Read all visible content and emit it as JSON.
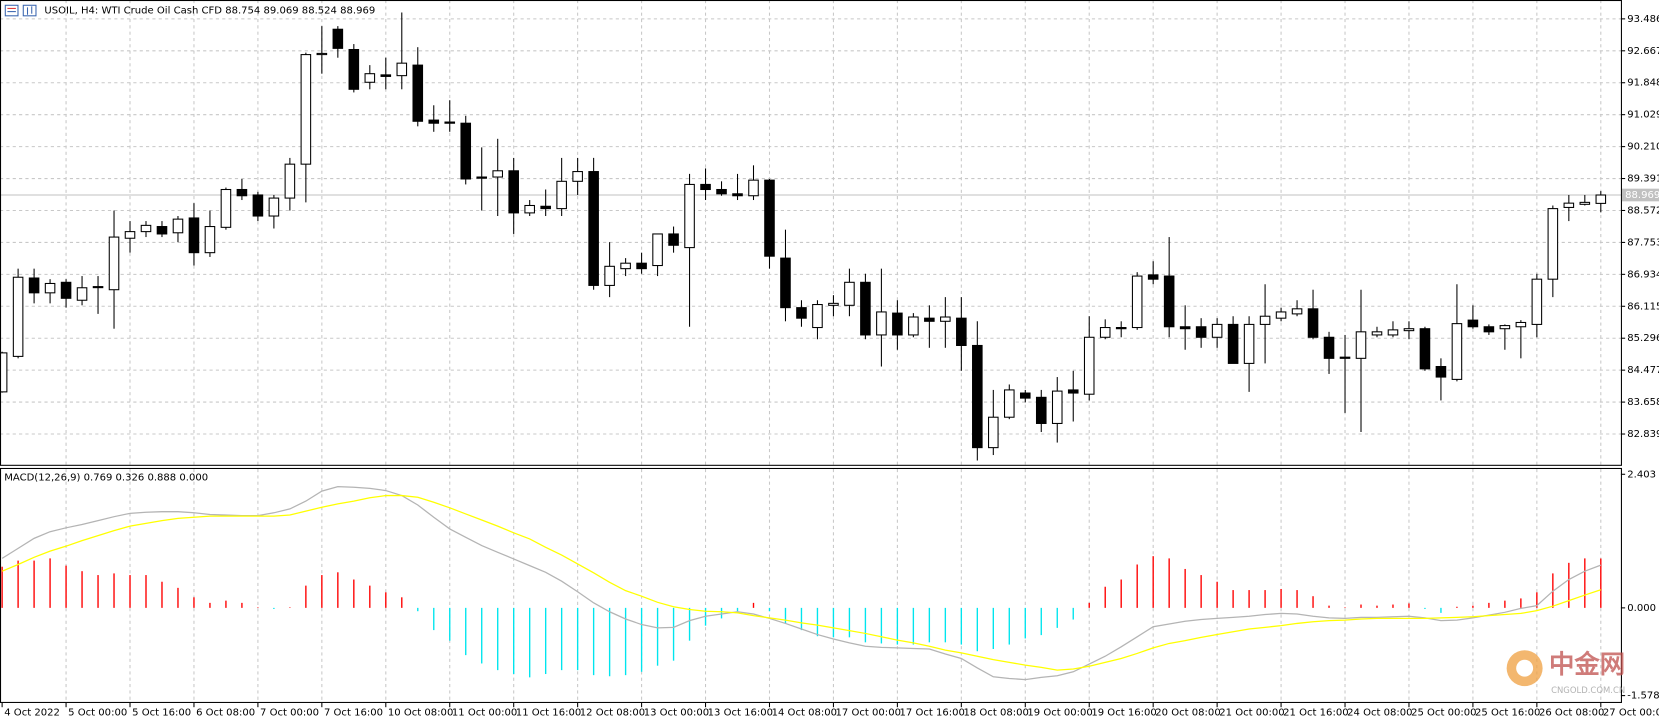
{
  "header": "USOIL, H4:  WTI Crude Oil Cash CFD  88.754 89.069 88.524 88.969",
  "chart_data": [
    {
      "type": "candlestick",
      "categories": [
        "4 Oct 2022",
        null,
        null,
        null,
        "5 Oct 00:00",
        null,
        null,
        null,
        "5 Oct 16:00",
        null,
        null,
        null,
        "6 Oct 08:00",
        null,
        null,
        null,
        "7 Oct 00:00",
        null,
        null,
        null,
        "7 Oct 16:00",
        null,
        null,
        null,
        "10 Oct 08:00",
        null,
        null,
        null,
        "11 Oct 00:00",
        null,
        null,
        null,
        "11 Oct 16:00",
        null,
        null,
        null,
        "12 Oct 08:00",
        null,
        null,
        null,
        "13 Oct 00:00",
        null,
        null,
        null,
        "13 Oct 16:00",
        null,
        null,
        null,
        "14 Oct 08:00",
        null,
        null,
        null,
        "17 Oct 00:00",
        null,
        null,
        null,
        "17 Oct 16:00",
        null,
        null,
        null,
        "18 Oct 08:00",
        null,
        null,
        null,
        "19 Oct 00:00",
        null,
        null,
        null,
        "19 Oct 16:00",
        null,
        null,
        null,
        "20 Oct 08:00",
        null,
        null,
        null,
        "21 Oct 00:00",
        null,
        null,
        null,
        "21 Oct 16:00",
        null,
        null,
        null,
        "24 Oct 08:00",
        null,
        null,
        null,
        "25 Oct 00:00",
        null,
        null,
        null,
        "25 Oct 16:00",
        null,
        null,
        null,
        "26 Oct 08:00",
        null,
        null,
        null,
        "27 Oct 00:00"
      ],
      "open": [
        83.92,
        84.83,
        86.84,
        86.46,
        86.73,
        86.27,
        86.62,
        86.54,
        87.86,
        88.03,
        88.16,
        88.0,
        88.38,
        87.49,
        88.14,
        89.11,
        88.97,
        88.43,
        88.89,
        89.76,
        92.57,
        93.22,
        92.7,
        91.86,
        92.05,
        92.03,
        92.3,
        90.89,
        90.84,
        90.81,
        89.43,
        89.43,
        89.59,
        88.51,
        88.68,
        88.62,
        89.32,
        89.57,
        86.65,
        87.08,
        87.22,
        87.16,
        87.97,
        87.62,
        89.24,
        89.11,
        89.0,
        88.95,
        89.35,
        87.35,
        86.08,
        85.57,
        86.14,
        86.14,
        86.73,
        85.38,
        85.94,
        85.38,
        85.81,
        85.73,
        85.81,
        85.11,
        82.49,
        83.27,
        83.89,
        83.78,
        83.11,
        83.97,
        83.86,
        85.32,
        85.57,
        85.57,
        86.92,
        86.89,
        85.59,
        85.59,
        85.32,
        85.65,
        84.65,
        85.65,
        85.81,
        85.92,
        86.05,
        85.32,
        84.81,
        84.78,
        85.38,
        85.38,
        85.49,
        85.54,
        84.57,
        84.24,
        85.76,
        85.59,
        85.54,
        85.59,
        85.65,
        86.81,
        88.65,
        88.73,
        88.754
      ],
      "high": [
        84.95,
        87.08,
        87.08,
        86.81,
        86.81,
        86.89,
        86.89,
        88.57,
        88.3,
        88.3,
        88.3,
        88.43,
        88.76,
        88.57,
        89.16,
        89.38,
        89.05,
        88.97,
        89.92,
        92.62,
        93.3,
        93.3,
        92.84,
        92.3,
        92.49,
        93.65,
        92.76,
        91.27,
        91.4,
        91.0,
        90.19,
        90.41,
        89.92,
        88.84,
        89.11,
        89.92,
        89.92,
        89.92,
        87.76,
        87.35,
        87.49,
        87.97,
        88.16,
        89.51,
        89.65,
        89.32,
        89.51,
        89.73,
        89.38,
        88.08,
        86.27,
        86.27,
        86.4,
        87.08,
        86.95,
        87.08,
        86.27,
        85.94,
        86.14,
        86.35,
        86.35,
        85.73,
        83.97,
        84.11,
        83.97,
        83.97,
        84.3,
        84.46,
        85.86,
        85.78,
        85.73,
        86.99,
        87.27,
        87.89,
        86.14,
        85.81,
        85.81,
        85.86,
        85.86,
        86.68,
        86.08,
        86.27,
        86.54,
        85.46,
        85.38,
        86.54,
        85.59,
        85.73,
        85.73,
        85.59,
        84.78,
        86.68,
        86.14,
        85.65,
        85.65,
        85.76,
        86.95,
        88.7,
        88.97,
        88.97,
        89.069
      ],
      "low": [
        83.9,
        84.78,
        86.19,
        86.19,
        86.08,
        86.14,
        85.92,
        85.54,
        87.49,
        87.89,
        87.89,
        87.76,
        87.16,
        87.38,
        88.08,
        88.84,
        88.3,
        88.11,
        88.57,
        88.78,
        92.08,
        92.49,
        91.6,
        91.68,
        91.68,
        91.68,
        90.73,
        90.59,
        90.59,
        89.24,
        88.57,
        88.43,
        87.97,
        88.43,
        88.43,
        88.43,
        88.97,
        86.54,
        86.35,
        86.89,
        86.95,
        86.89,
        87.49,
        85.59,
        88.84,
        88.95,
        88.84,
        88.84,
        87.08,
        85.73,
        85.59,
        85.27,
        85.86,
        85.86,
        85.27,
        84.57,
        85.0,
        85.32,
        85.05,
        85.05,
        84.46,
        82.16,
        82.3,
        83.22,
        83.65,
        82.89,
        82.62,
        83.16,
        83.7,
        85.27,
        85.32,
        85.51,
        86.68,
        85.32,
        85.0,
        85.05,
        85.05,
        84.65,
        83.92,
        84.65,
        85.73,
        85.86,
        85.27,
        84.38,
        83.38,
        82.89,
        85.32,
        85.32,
        85.27,
        84.46,
        83.7,
        84.19,
        85.54,
        85.38,
        85.0,
        84.78,
        85.32,
        86.35,
        88.3,
        88.7,
        88.524
      ],
      "close": [
        84.92,
        86.86,
        86.46,
        86.7,
        86.32,
        86.59,
        86.6,
        87.89,
        88.03,
        88.19,
        87.97,
        88.35,
        87.49,
        88.16,
        89.11,
        88.95,
        88.43,
        88.89,
        89.76,
        92.57,
        92.6,
        92.73,
        91.68,
        92.08,
        92.01,
        92.35,
        90.86,
        90.81,
        90.81,
        89.38,
        89.4,
        89.59,
        88.51,
        88.7,
        88.62,
        89.32,
        89.57,
        86.65,
        87.14,
        87.22,
        87.08,
        87.97,
        87.68,
        89.24,
        89.11,
        89.0,
        88.95,
        89.35,
        87.4,
        86.08,
        85.81,
        86.16,
        86.19,
        86.73,
        85.38,
        85.97,
        85.38,
        85.84,
        85.73,
        85.84,
        85.11,
        82.49,
        83.27,
        83.97,
        83.76,
        83.11,
        83.94,
        83.89,
        85.32,
        85.57,
        85.54,
        86.89,
        86.81,
        85.59,
        85.54,
        85.32,
        85.65,
        84.65,
        85.65,
        85.86,
        85.97,
        86.05,
        85.32,
        84.78,
        84.78,
        85.46,
        85.46,
        85.51,
        85.54,
        84.51,
        84.3,
        85.67,
        85.59,
        85.46,
        85.62,
        85.7,
        86.81,
        88.62,
        88.76,
        88.78,
        88.969
      ],
      "up_color": "#ffffff",
      "down_color": "#000000",
      "ylim": [
        82.05,
        93.97
      ],
      "yticks": [
        93.486,
        92.667,
        91.848,
        91.029,
        {
          "value": 90.21,
          "label": "90.210"
        },
        89.391,
        88.572,
        87.753,
        86.934,
        86.115,
        85.296,
        84.477,
        83.658,
        82.839
      ],
      "current_price": 88.969,
      "grid": true
    },
    {
      "type": "macd",
      "title": "MACD(12,26,9) 0.769 0.326 0.888 0.000",
      "histogram": {
        "positive_color": "#ff0000",
        "negative_color": "#00e5ee",
        "values": [
          0.74,
          0.85,
          0.85,
          0.89,
          0.76,
          0.66,
          0.59,
          0.62,
          0.59,
          0.59,
          0.47,
          0.36,
          0.19,
          0.09,
          0.13,
          0.09,
          0.01,
          -0.02,
          0.01,
          0.4,
          0.59,
          0.64,
          0.51,
          0.4,
          0.28,
          0.19,
          -0.06,
          -0.4,
          -0.59,
          -0.85,
          -1.0,
          -1.12,
          -1.19,
          -1.25,
          -1.19,
          -1.12,
          -1.12,
          -1.21,
          -1.23,
          -1.21,
          -1.15,
          -1.04,
          -0.95,
          -0.59,
          -0.32,
          -0.19,
          -0.06,
          0.09,
          -0.06,
          -0.28,
          -0.4,
          -0.51,
          -0.53,
          -0.53,
          -0.62,
          -0.64,
          -0.66,
          -0.66,
          -0.62,
          -0.62,
          -0.66,
          -0.78,
          -0.74,
          -0.66,
          -0.55,
          -0.49,
          -0.36,
          -0.21,
          0.09,
          0.38,
          0.51,
          0.78,
          0.93,
          0.89,
          0.7,
          0.59,
          0.47,
          0.32,
          0.32,
          0.32,
          0.34,
          0.32,
          0.21,
          0.04,
          0.01,
          0.06,
          0.04,
          0.06,
          0.08,
          -0.02,
          -0.09,
          0.02,
          0.04,
          0.09,
          0.13,
          0.17,
          0.28,
          0.62,
          0.81,
          0.89,
          0.888
        ]
      },
      "lines": [
        {
          "color": "#b4b4b4",
          "values": [
            0.89,
            1.07,
            1.25,
            1.37,
            1.44,
            1.5,
            1.57,
            1.64,
            1.7,
            1.72,
            1.73,
            1.73,
            1.71,
            1.68,
            1.67,
            1.66,
            1.66,
            1.71,
            1.78,
            1.92,
            2.1,
            2.18,
            2.17,
            2.15,
            2.11,
            2.02,
            1.85,
            1.63,
            1.42,
            1.27,
            1.12,
            1.0,
            0.88,
            0.76,
            0.64,
            0.48,
            0.29,
            0.09,
            -0.07,
            -0.2,
            -0.3,
            -0.36,
            -0.35,
            -0.23,
            -0.15,
            -0.11,
            -0.07,
            -0.11,
            -0.19,
            -0.28,
            -0.38,
            -0.48,
            -0.56,
            -0.63,
            -0.69,
            -0.71,
            -0.72,
            -0.73,
            -0.74,
            -0.83,
            -0.91,
            -1.08,
            -1.24,
            -1.27,
            -1.29,
            -1.25,
            -1.22,
            -1.15,
            -1.01,
            -0.87,
            -0.7,
            -0.52,
            -0.34,
            -0.29,
            -0.24,
            -0.21,
            -0.19,
            -0.17,
            -0.15,
            -0.12,
            -0.1,
            -0.11,
            -0.15,
            -0.18,
            -0.19,
            -0.17,
            -0.17,
            -0.16,
            -0.15,
            -0.18,
            -0.23,
            -0.22,
            -0.18,
            -0.13,
            -0.08,
            -0.01,
            0.04,
            0.3,
            0.51,
            0.66,
            0.769
          ]
        },
        {
          "color": "#ffff00",
          "values": [
            0.66,
            0.78,
            0.91,
            1.02,
            1.11,
            1.21,
            1.3,
            1.39,
            1.47,
            1.52,
            1.57,
            1.61,
            1.63,
            1.65,
            1.65,
            1.65,
            1.65,
            1.65,
            1.67,
            1.74,
            1.81,
            1.87,
            1.92,
            1.98,
            2.02,
            2.02,
            1.99,
            1.9,
            1.8,
            1.69,
            1.58,
            1.47,
            1.35,
            1.24,
            1.09,
            0.95,
            0.79,
            0.63,
            0.46,
            0.31,
            0.21,
            0.1,
            0.02,
            -0.03,
            -0.06,
            -0.07,
            -0.09,
            -0.14,
            -0.18,
            -0.22,
            -0.27,
            -0.31,
            -0.36,
            -0.41,
            -0.46,
            -0.52,
            -0.58,
            -0.63,
            -0.69,
            -0.76,
            -0.81,
            -0.87,
            -0.93,
            -0.98,
            -1.03,
            -1.07,
            -1.12,
            -1.1,
            -1.05,
            -0.98,
            -0.91,
            -0.82,
            -0.72,
            -0.64,
            -0.59,
            -0.53,
            -0.48,
            -0.43,
            -0.38,
            -0.35,
            -0.32,
            -0.28,
            -0.25,
            -0.23,
            -0.22,
            -0.2,
            -0.19,
            -0.19,
            -0.19,
            -0.19,
            -0.18,
            -0.17,
            -0.16,
            -0.14,
            -0.12,
            -0.1,
            -0.05,
            0.03,
            0.13,
            0.23,
            0.326
          ]
        }
      ],
      "ylim": [
        -1.578,
        2.403
      ],
      "yticks": [
        2.403,
        {
          "value": 0,
          "label": "0.000"
        },
        -1.578
      ]
    }
  ],
  "watermark": {
    "brand": "中金网",
    "site": "CNGOLD.COM.CN"
  }
}
